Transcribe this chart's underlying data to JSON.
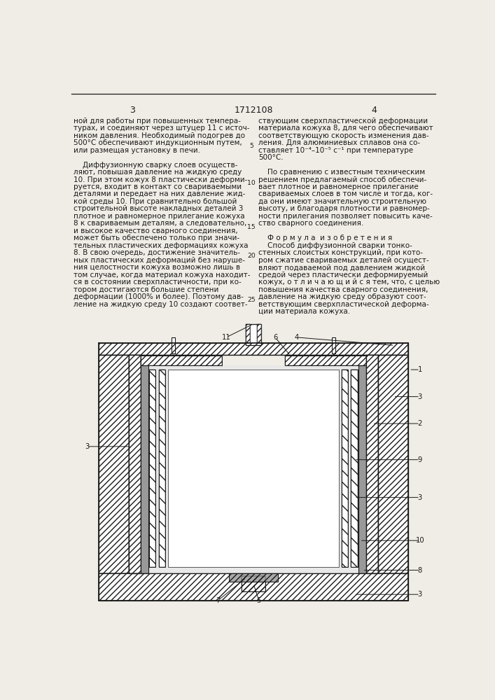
{
  "background_color": "#f0ede6",
  "text_color": "#1a1a1a",
  "font_size": 7.5,
  "page_num_left": "3",
  "page_num_center": "1712108",
  "page_num_right": "4",
  "left_col": [
    "ной для работы при повышенных темпера-",
    "турах, и соединяют через штуцер 11 с источ-",
    "ником давления. Необходимый подогрев до",
    "500°С обеспечивают индукционным путем,",
    "или размещая установку в печи.",
    " ",
    "    Диффузионную сварку слоев осуществ-",
    "ляют, повышая давление на жидкую среду",
    "10. При этом кожух 8 пластически деформи-",
    "руется, входит в контакт со свариваемыми",
    "деталями и передает на них давление жид-",
    "кой среды 10. При сравнительно большой",
    "строительной высоте накладных деталей 3",
    "плотное и равномерное прилегание кожуха",
    "8 к свариваемым деталям, а следовательно,",
    "и высокое качество сварного соединения,",
    "может быть обеспечено только при значи-",
    "тельных пластических деформациях кожуха",
    "8. В свою очередь, достижение значитель-",
    "ных пластических деформаций без наруше-",
    "ния целостности кожуха возможно лишь в",
    "том случае, когда материал кожуха находит-",
    "ся в состоянии сверхпластичности, при ко-",
    "тором достигаются большие степени",
    "деформации (1000% и более). Поэтому дав-",
    "ление на жидкую среду 10 создают соответ-"
  ],
  "right_col": [
    "ствующим сверхпластической деформации",
    "материала кожуха 8, для чего обеспечивают",
    "соответствующую скорость изменения дав-",
    "ления. Для алюминиевых сплавов она со-",
    "ставляет 10⁻⁴–10⁻⁵ с⁻¹ при температуре",
    "500°С.",
    " ",
    "    По сравнению с известным техническим",
    "решением предлагаемый способ обеспечи-",
    "вает плотное и равномерное прилегание",
    "свариваемых слоев в том числе и тогда, ког-",
    "да они имеют значительную строительную",
    "высоту, и благодаря плотности и равномер-",
    "ности прилегания позволяет повысить каче-",
    "ство сварного соединения.",
    " ",
    "    Ф о р м у л а  и з о б р е т е н и я",
    "    Способ диффузионной сварки тонко-",
    "стенных слоистых конструкций, при кото-",
    "ром сжатие свариваемых деталей осущест-",
    "вляют подаваемой под давлением жидкой",
    "средой через пластически деформируемый",
    "кожух, о т л и ч а ю щ и й с я тем, что, с целью",
    "повышения качества сварного соединения,",
    "давление на жидкую среду образуют соот-",
    "ветствующим сверхпластической деформа-",
    "ции материала кожуха."
  ],
  "line_numbers": [
    [
      5,
      4
    ],
    [
      10,
      9
    ],
    [
      15,
      15
    ],
    [
      20,
      19
    ],
    [
      25,
      25
    ]
  ]
}
